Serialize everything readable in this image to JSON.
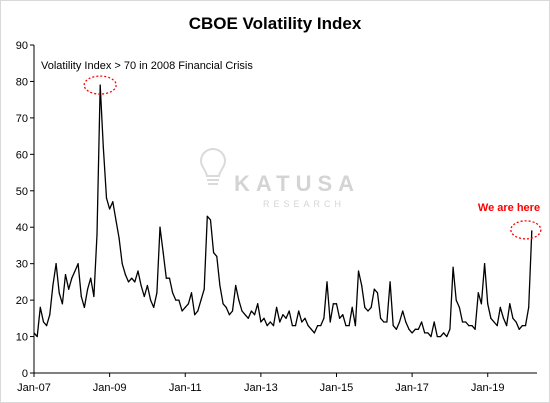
{
  "chart_data": {
    "type": "line",
    "title": "CBOE Volatility Index",
    "xlabel": "",
    "ylabel": "",
    "ylim": [
      0,
      90
    ],
    "yticks": [
      "0",
      "10",
      "20",
      "30",
      "40",
      "50",
      "60",
      "70",
      "80",
      "90"
    ],
    "xticks": [
      "Jan-07",
      "Jan-09",
      "Jan-11",
      "Jan-13",
      "Jan-15",
      "Jan-17",
      "Jan-19"
    ],
    "xrange": [
      "2007-01",
      "2020-04"
    ],
    "grid": false,
    "legend": "none",
    "annotations": {
      "top_note": "Volatility  Index > 70 in 2008 Financial Crisis",
      "right_note": "We are here",
      "right_note_color": "#ff0000",
      "circle_color": "#ff0000"
    },
    "watermark": {
      "name": "KATUSA",
      "sub": "RESEARCH"
    },
    "series": [
      {
        "x": [
          "2007-01",
          "2007-02",
          "2007-03",
          "2007-04",
          "2007-05",
          "2007-06",
          "2007-07",
          "2007-08",
          "2007-09",
          "2007-10",
          "2007-11",
          "2007-12",
          "2008-01",
          "2008-02",
          "2008-03",
          "2008-04",
          "2008-05",
          "2008-06",
          "2008-07",
          "2008-08",
          "2008-09",
          "2008-10",
          "2008-11",
          "2008-12",
          "2009-01",
          "2009-02",
          "2009-03",
          "2009-04",
          "2009-05",
          "2009-06",
          "2009-07",
          "2009-08",
          "2009-09",
          "2009-10",
          "2009-11",
          "2009-12",
          "2010-01",
          "2010-02",
          "2010-03",
          "2010-04",
          "2010-05",
          "2010-06",
          "2010-07",
          "2010-08",
          "2010-09",
          "2010-10",
          "2010-11",
          "2010-12",
          "2011-01",
          "2011-02",
          "2011-03",
          "2011-04",
          "2011-05",
          "2011-06",
          "2011-07",
          "2011-08",
          "2011-09",
          "2011-10",
          "2011-11",
          "2011-12",
          "2012-01",
          "2012-02",
          "2012-03",
          "2012-04",
          "2012-05",
          "2012-06",
          "2012-07",
          "2012-08",
          "2012-09",
          "2012-10",
          "2012-11",
          "2012-12",
          "2013-01",
          "2013-02",
          "2013-03",
          "2013-04",
          "2013-05",
          "2013-06",
          "2013-07",
          "2013-08",
          "2013-09",
          "2013-10",
          "2013-11",
          "2013-12",
          "2014-01",
          "2014-02",
          "2014-03",
          "2014-04",
          "2014-05",
          "2014-06",
          "2014-07",
          "2014-08",
          "2014-09",
          "2014-10",
          "2014-11",
          "2014-12",
          "2015-01",
          "2015-02",
          "2015-03",
          "2015-04",
          "2015-05",
          "2015-06",
          "2015-07",
          "2015-08",
          "2015-09",
          "2015-10",
          "2015-11",
          "2015-12",
          "2016-01",
          "2016-02",
          "2016-03",
          "2016-04",
          "2016-05",
          "2016-06",
          "2016-07",
          "2016-08",
          "2016-09",
          "2016-10",
          "2016-11",
          "2016-12",
          "2017-01",
          "2017-02",
          "2017-03",
          "2017-04",
          "2017-05",
          "2017-06",
          "2017-07",
          "2017-08",
          "2017-09",
          "2017-10",
          "2017-11",
          "2017-12",
          "2018-01",
          "2018-02",
          "2018-03",
          "2018-04",
          "2018-05",
          "2018-06",
          "2018-07",
          "2018-08",
          "2018-09",
          "2018-10",
          "2018-11",
          "2018-12",
          "2019-01",
          "2019-02",
          "2019-03",
          "2019-04",
          "2019-05",
          "2019-06",
          "2019-07",
          "2019-08",
          "2019-09",
          "2019-10",
          "2019-11",
          "2019-12",
          "2020-01",
          "2020-02",
          "2020-03"
        ],
        "values": [
          11,
          10,
          18,
          14,
          13,
          16,
          24,
          30,
          22,
          19,
          27,
          23,
          26,
          28,
          30,
          21,
          18,
          23,
          26,
          21,
          38,
          79,
          62,
          48,
          45,
          47,
          42,
          37,
          30,
          27,
          25,
          26,
          25,
          28,
          24,
          21,
          24,
          20,
          18,
          22,
          40,
          33,
          26,
          26,
          22,
          20,
          20,
          17,
          18,
          19,
          22,
          16,
          17,
          20,
          23,
          43,
          42,
          33,
          32,
          24,
          19,
          18,
          16,
          17,
          24,
          20,
          17,
          16,
          15,
          17,
          16,
          19,
          14,
          15,
          13,
          14,
          13,
          18,
          14,
          16,
          15,
          17,
          13,
          13,
          17,
          14,
          15,
          13,
          12,
          11,
          13,
          13,
          15,
          25,
          14,
          19,
          19,
          15,
          16,
          13,
          13,
          18,
          13,
          28,
          24,
          18,
          17,
          18,
          23,
          22,
          15,
          14,
          14,
          25,
          13,
          12,
          14,
          17,
          14,
          12,
          11,
          12,
          12,
          14,
          11,
          11,
          10,
          14,
          10,
          10,
          11,
          10,
          12,
          29,
          20,
          18,
          14,
          14,
          13,
          13,
          12,
          22,
          19,
          30,
          19,
          15,
          14,
          13,
          18,
          15,
          13,
          19,
          15,
          14,
          12,
          13,
          13,
          18,
          39
        ]
      }
    ]
  }
}
